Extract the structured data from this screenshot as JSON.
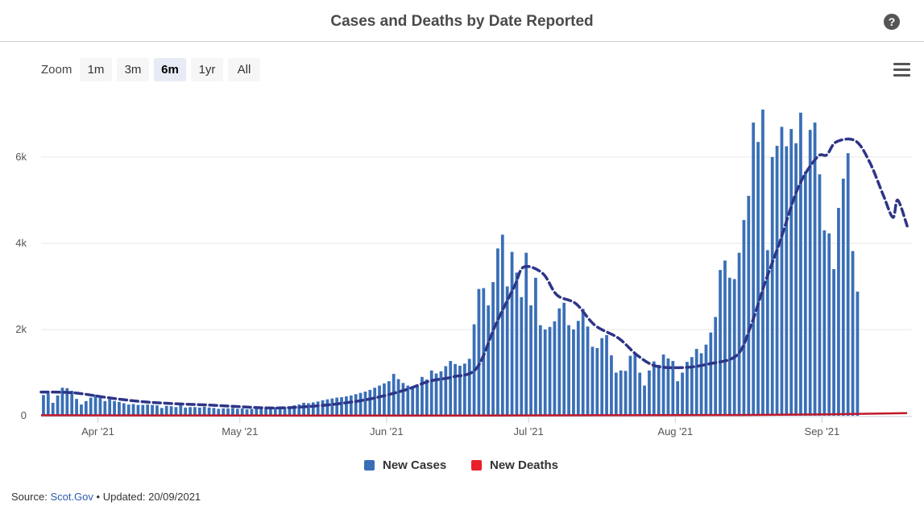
{
  "header": {
    "title": "Cases and Deaths by Date Reported",
    "help_icon": "help-icon",
    "help_symbol": "?"
  },
  "zoom": {
    "label": "Zoom",
    "buttons": [
      "1m",
      "3m",
      "6m",
      "1yr",
      "All"
    ],
    "active": "6m"
  },
  "menu_icon": "hamburger-menu-icon",
  "legend": {
    "items": [
      {
        "label": "New Cases",
        "color": "#3a6fb7"
      },
      {
        "label": "New Deaths",
        "color": "#e8202a"
      }
    ]
  },
  "source": {
    "prefix": "Source:",
    "link": "Scot.Gov",
    "separator": "•",
    "updated": "Updated: 20/09/2021"
  },
  "colors": {
    "cases": "#3a6fb7",
    "deaths": "#c0182a",
    "average": "#2e3587",
    "grid": "#e6e6e6"
  },
  "chart_data": {
    "type": "bar",
    "x_axis": {
      "type": "date",
      "start": "2021-03-20",
      "end": "2021-09-20",
      "ticks": [
        "Apr '21",
        "May '21",
        "Jun '21",
        "Jul '21",
        "Aug '21",
        "Sep '21"
      ],
      "tick_dates": [
        "2021-04-01",
        "2021-05-01",
        "2021-06-01",
        "2021-07-01",
        "2021-08-01",
        "2021-09-01"
      ]
    },
    "y_axis": {
      "ticks": [
        "0",
        "2k",
        "4k",
        "6k"
      ],
      "tick_values": [
        0,
        2000,
        4000,
        6000
      ],
      "ylim": [
        0,
        7400
      ]
    },
    "grid": true,
    "legend_position": "bottom-center",
    "series": [
      {
        "name": "New Cases",
        "type": "bar",
        "start": "2021-03-20",
        "values": [
          480,
          520,
          300,
          470,
          650,
          640,
          580,
          390,
          260,
          340,
          420,
          490,
          410,
          340,
          380,
          340,
          320,
          290,
          260,
          270,
          250,
          250,
          260,
          250,
          240,
          180,
          230,
          220,
          200,
          250,
          190,
          200,
          200,
          190,
          210,
          190,
          180,
          160,
          170,
          170,
          180,
          160,
          170,
          150,
          160,
          160,
          170,
          180,
          210,
          200,
          190,
          200,
          210,
          240,
          260,
          300,
          290,
          310,
          330,
          360,
          380,
          400,
          420,
          430,
          450,
          470,
          500,
          530,
          560,
          600,
          650,
          700,
          750,
          800,
          970,
          850,
          760,
          700,
          640,
          690,
          900,
          840,
          1050,
          980,
          1030,
          1150,
          1270,
          1200,
          1160,
          1210,
          1320,
          2120,
          2940,
          2960,
          2560,
          3100,
          3880,
          4200,
          3000,
          3800,
          3320,
          2750,
          3780,
          2560,
          3200,
          2100,
          2000,
          2060,
          2190,
          2490,
          2620,
          2100,
          2000,
          2200,
          2480,
          2070,
          1600,
          1570,
          1800,
          1870,
          1400,
          1000,
          1050,
          1040,
          1390,
          1430,
          1000,
          700,
          1050,
          1260,
          1180,
          1420,
          1330,
          1270,
          800,
          1000,
          1250,
          1360,
          1550,
          1450,
          1650,
          1930,
          2290,
          3380,
          3600,
          3200,
          3170,
          3780,
          4540,
          5100,
          6800,
          6350,
          7100,
          3840,
          6000,
          6260,
          6700,
          6250,
          6650,
          6320,
          7030,
          5660,
          6630,
          6800,
          5600,
          4300,
          4230,
          3400,
          4820,
          5500,
          6090,
          3820,
          2880
        ]
      },
      {
        "name": "7-day average",
        "type": "line",
        "style": "dashed",
        "points": [
          [
            "2021-03-20",
            550
          ],
          [
            "2021-03-27",
            530
          ],
          [
            "2021-04-03",
            420
          ],
          [
            "2021-04-10",
            330
          ],
          [
            "2021-04-17",
            280
          ],
          [
            "2021-04-24",
            250
          ],
          [
            "2021-05-01",
            210
          ],
          [
            "2021-05-08",
            180
          ],
          [
            "2021-05-15",
            210
          ],
          [
            "2021-05-22",
            280
          ],
          [
            "2021-05-29",
            400
          ],
          [
            "2021-06-05",
            600
          ],
          [
            "2021-06-10",
            800
          ],
          [
            "2021-06-15",
            900
          ],
          [
            "2021-06-20",
            1100
          ],
          [
            "2021-06-24",
            2100
          ],
          [
            "2021-06-28",
            3000
          ],
          [
            "2021-06-30",
            3450
          ],
          [
            "2021-07-04",
            3300
          ],
          [
            "2021-07-07",
            2800
          ],
          [
            "2021-07-11",
            2600
          ],
          [
            "2021-07-15",
            2100
          ],
          [
            "2021-07-20",
            1800
          ],
          [
            "2021-07-24",
            1400
          ],
          [
            "2021-07-28",
            1150
          ],
          [
            "2021-08-03",
            1120
          ],
          [
            "2021-08-08",
            1200
          ],
          [
            "2021-08-14",
            1400
          ],
          [
            "2021-08-17",
            2100
          ],
          [
            "2021-08-20",
            3100
          ],
          [
            "2021-08-23",
            4000
          ],
          [
            "2021-08-27",
            5300
          ],
          [
            "2021-08-31",
            6000
          ],
          [
            "2021-09-02",
            6050
          ],
          [
            "2021-09-04",
            6350
          ],
          [
            "2021-09-08",
            6380
          ],
          [
            "2021-09-11",
            5900
          ],
          [
            "2021-09-14",
            5100
          ],
          [
            "2021-09-16",
            4600
          ],
          [
            "2021-09-17",
            5000
          ],
          [
            "2021-09-19",
            4400
          ]
        ]
      },
      {
        "name": "New Deaths",
        "type": "line",
        "points": [
          [
            "2021-03-20",
            12
          ],
          [
            "2021-04-15",
            8
          ],
          [
            "2021-05-15",
            4
          ],
          [
            "2021-06-15",
            3
          ],
          [
            "2021-07-15",
            12
          ],
          [
            "2021-08-15",
            16
          ],
          [
            "2021-09-01",
            30
          ],
          [
            "2021-09-19",
            60
          ]
        ]
      }
    ]
  }
}
